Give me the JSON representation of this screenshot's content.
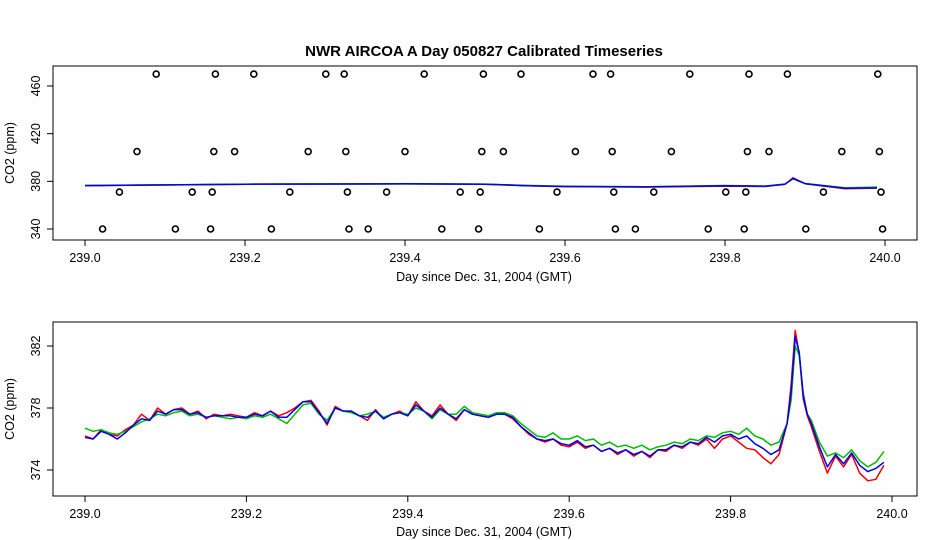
{
  "chart_data": [
    {
      "type": "scatter",
      "title": "NWR AIRCOA A  Day 050827  Calibrated Timeseries",
      "xlabel": "Day since Dec. 31, 2004 (GMT)",
      "ylabel": "CO2 (ppm)",
      "xlim": [
        239.0,
        240.0
      ],
      "ylim": [
        333,
        474
      ],
      "xticks": [
        239.0,
        239.2,
        239.4,
        239.6,
        239.8,
        240.0
      ],
      "xtick_labels": [
        "239.0",
        "239.2",
        "239.4",
        "239.6",
        "239.8",
        "240.0"
      ],
      "yticks": [
        340,
        380,
        420,
        460
      ],
      "ytick_labels": [
        "340",
        "380",
        "420",
        "460"
      ],
      "reference_points": [
        {
          "x": 239.022,
          "y": 340
        },
        {
          "x": 239.043,
          "y": 371
        },
        {
          "x": 239.065,
          "y": 405
        },
        {
          "x": 239.089,
          "y": 470
        },
        {
          "x": 239.113,
          "y": 340
        },
        {
          "x": 239.134,
          "y": 371
        },
        {
          "x": 239.157,
          "y": 340
        },
        {
          "x": 239.159,
          "y": 371
        },
        {
          "x": 239.161,
          "y": 405
        },
        {
          "x": 239.163,
          "y": 470
        },
        {
          "x": 239.187,
          "y": 405
        },
        {
          "x": 239.211,
          "y": 470
        },
        {
          "x": 239.233,
          "y": 340
        },
        {
          "x": 239.256,
          "y": 371
        },
        {
          "x": 239.279,
          "y": 405
        },
        {
          "x": 239.301,
          "y": 470
        },
        {
          "x": 239.324,
          "y": 470
        },
        {
          "x": 239.326,
          "y": 405
        },
        {
          "x": 239.328,
          "y": 371
        },
        {
          "x": 239.33,
          "y": 340
        },
        {
          "x": 239.354,
          "y": 340
        },
        {
          "x": 239.377,
          "y": 371
        },
        {
          "x": 239.4,
          "y": 405
        },
        {
          "x": 239.424,
          "y": 470
        },
        {
          "x": 239.446,
          "y": 340
        },
        {
          "x": 239.469,
          "y": 371
        },
        {
          "x": 239.492,
          "y": 340
        },
        {
          "x": 239.494,
          "y": 371
        },
        {
          "x": 239.496,
          "y": 405
        },
        {
          "x": 239.498,
          "y": 470
        },
        {
          "x": 239.523,
          "y": 405
        },
        {
          "x": 239.545,
          "y": 470
        },
        {
          "x": 239.568,
          "y": 340
        },
        {
          "x": 239.59,
          "y": 371
        },
        {
          "x": 239.613,
          "y": 405
        },
        {
          "x": 239.635,
          "y": 470
        },
        {
          "x": 239.657,
          "y": 470
        },
        {
          "x": 239.659,
          "y": 405
        },
        {
          "x": 239.661,
          "y": 371
        },
        {
          "x": 239.663,
          "y": 340
        },
        {
          "x": 239.688,
          "y": 340
        },
        {
          "x": 239.711,
          "y": 371
        },
        {
          "x": 239.733,
          "y": 405
        },
        {
          "x": 239.756,
          "y": 470
        },
        {
          "x": 239.779,
          "y": 340
        },
        {
          "x": 239.801,
          "y": 371
        },
        {
          "x": 239.824,
          "y": 340
        },
        {
          "x": 239.826,
          "y": 371
        },
        {
          "x": 239.828,
          "y": 405
        },
        {
          "x": 239.83,
          "y": 470
        },
        {
          "x": 239.855,
          "y": 405
        },
        {
          "x": 239.878,
          "y": 470
        },
        {
          "x": 239.901,
          "y": 340
        },
        {
          "x": 239.923,
          "y": 371
        },
        {
          "x": 239.946,
          "y": 405
        },
        {
          "x": 239.991,
          "y": 470
        },
        {
          "x": 239.993,
          "y": 405
        },
        {
          "x": 239.995,
          "y": 371
        },
        {
          "x": 239.997,
          "y": 340
        }
      ],
      "series": [
        {
          "name": "red",
          "color": "#ee0000",
          "x": [
            239.0,
            239.2,
            239.4,
            239.5,
            239.55,
            239.6,
            239.7,
            239.8,
            239.85,
            239.875,
            239.885,
            239.9,
            239.95,
            239.99
          ],
          "values": [
            376.3,
            377.6,
            377.9,
            377.6,
            376.3,
            375.6,
            375.2,
            376.0,
            375.7,
            377.5,
            383.0,
            378.0,
            373.8,
            374.3
          ]
        },
        {
          "name": "green",
          "color": "#00bb00",
          "x": [
            239.0,
            239.2,
            239.4,
            239.5,
            239.55,
            239.6,
            239.7,
            239.8,
            239.85,
            239.875,
            239.885,
            239.9,
            239.95,
            239.99
          ],
          "values": [
            376.6,
            377.5,
            377.8,
            377.7,
            376.6,
            375.9,
            375.5,
            376.5,
            376.0,
            377.8,
            382.0,
            378.2,
            374.6,
            375.2
          ]
        },
        {
          "name": "blue",
          "color": "#0000ee",
          "x": [
            239.0,
            239.2,
            239.4,
            239.5,
            239.55,
            239.6,
            239.7,
            239.8,
            239.85,
            239.875,
            239.885,
            239.9,
            239.95,
            239.99
          ],
          "values": [
            376.4,
            377.6,
            377.9,
            377.6,
            376.4,
            375.7,
            375.3,
            376.3,
            375.9,
            377.6,
            382.5,
            378.1,
            374.2,
            374.5
          ]
        }
      ]
    },
    {
      "type": "line",
      "title": "",
      "xlabel": "Day since Dec. 31, 2004 (GMT)",
      "ylabel": "CO2 (ppm)",
      "xlim": [
        238.995,
        240.05
      ],
      "ylim": [
        373.2,
        383.5
      ],
      "xticks": [
        239.0,
        239.2,
        239.4,
        239.6,
        239.8,
        240.0
      ],
      "xtick_labels": [
        "239.0",
        "239.2",
        "239.4",
        "239.6",
        "239.8",
        "240.0"
      ],
      "yticks": [
        374,
        378,
        382
      ],
      "ytick_labels": [
        "374",
        "378",
        "382"
      ],
      "series": [
        {
          "name": "red",
          "color": "#ee0000",
          "x": [
            239.0,
            239.01,
            239.02,
            239.03,
            239.04,
            239.05,
            239.06,
            239.07,
            239.08,
            239.09,
            239.1,
            239.11,
            239.12,
            239.13,
            239.14,
            239.15,
            239.16,
            239.17,
            239.18,
            239.19,
            239.2,
            239.21,
            239.22,
            239.23,
            239.24,
            239.25,
            239.26,
            239.27,
            239.28,
            239.29,
            239.3,
            239.31,
            239.32,
            239.33,
            239.34,
            239.35,
            239.36,
            239.37,
            239.38,
            239.39,
            239.4,
            239.41,
            239.42,
            239.43,
            239.44,
            239.45,
            239.46,
            239.47,
            239.48,
            239.49,
            239.5,
            239.51,
            239.52,
            239.53,
            239.54,
            239.55,
            239.56,
            239.57,
            239.58,
            239.59,
            239.6,
            239.61,
            239.62,
            239.63,
            239.64,
            239.65,
            239.66,
            239.67,
            239.68,
            239.69,
            239.7,
            239.71,
            239.72,
            239.73,
            239.74,
            239.75,
            239.76,
            239.77,
            239.78,
            239.79,
            239.8,
            239.81,
            239.82,
            239.83,
            239.84,
            239.85,
            239.86,
            239.87,
            239.875,
            239.88,
            239.885,
            239.89,
            239.895,
            239.9,
            239.91,
            239.92,
            239.93,
            239.94,
            239.95,
            239.96,
            239.97,
            239.98,
            239.99
          ],
          "values": [
            376.2,
            376.0,
            376.6,
            376.3,
            376.2,
            376.6,
            376.9,
            377.6,
            377.2,
            378.0,
            377.6,
            377.9,
            378.0,
            377.6,
            377.8,
            377.3,
            377.6,
            377.5,
            377.6,
            377.5,
            377.4,
            377.7,
            377.5,
            377.8,
            377.5,
            377.7,
            378.0,
            378.4,
            378.5,
            377.8,
            376.9,
            378.1,
            377.8,
            377.8,
            377.5,
            377.2,
            377.9,
            377.3,
            377.6,
            377.8,
            377.5,
            378.4,
            377.8,
            377.5,
            378.2,
            377.6,
            377.2,
            377.9,
            377.6,
            377.5,
            377.4,
            377.6,
            377.6,
            377.3,
            376.8,
            376.3,
            376.0,
            375.8,
            376.0,
            375.6,
            375.5,
            375.8,
            375.4,
            375.6,
            375.2,
            375.4,
            375.0,
            375.3,
            374.9,
            375.2,
            374.8,
            375.3,
            375.2,
            375.6,
            375.4,
            375.8,
            375.6,
            376.0,
            375.4,
            376.0,
            376.2,
            375.8,
            375.4,
            375.3,
            374.8,
            374.4,
            375.0,
            377.0,
            379.5,
            383.0,
            381.5,
            378.6,
            377.5,
            376.8,
            375.2,
            373.8,
            374.9,
            374.2,
            375.0,
            373.8,
            373.3,
            373.4,
            374.3
          ]
        },
        {
          "name": "green",
          "color": "#00bb00",
          "x": [
            239.0,
            239.01,
            239.02,
            239.03,
            239.04,
            239.05,
            239.06,
            239.07,
            239.08,
            239.09,
            239.1,
            239.11,
            239.12,
            239.13,
            239.14,
            239.15,
            239.16,
            239.17,
            239.18,
            239.19,
            239.2,
            239.21,
            239.22,
            239.23,
            239.24,
            239.25,
            239.26,
            239.27,
            239.28,
            239.29,
            239.3,
            239.31,
            239.32,
            239.33,
            239.34,
            239.35,
            239.36,
            239.37,
            239.38,
            239.39,
            239.4,
            239.41,
            239.42,
            239.43,
            239.44,
            239.45,
            239.46,
            239.47,
            239.48,
            239.49,
            239.5,
            239.51,
            239.52,
            239.53,
            239.54,
            239.55,
            239.56,
            239.57,
            239.58,
            239.59,
            239.6,
            239.61,
            239.62,
            239.63,
            239.64,
            239.65,
            239.66,
            239.67,
            239.68,
            239.69,
            239.7,
            239.71,
            239.72,
            239.73,
            239.74,
            239.75,
            239.76,
            239.77,
            239.78,
            239.79,
            239.8,
            239.81,
            239.82,
            239.83,
            239.84,
            239.85,
            239.86,
            239.87,
            239.875,
            239.88,
            239.885,
            239.89,
            239.895,
            239.9,
            239.91,
            239.92,
            239.93,
            239.94,
            239.95,
            239.96,
            239.97,
            239.98,
            239.99
          ],
          "values": [
            376.7,
            376.5,
            376.6,
            376.4,
            376.3,
            376.5,
            376.8,
            377.1,
            377.3,
            377.6,
            377.5,
            377.7,
            377.8,
            377.5,
            377.6,
            377.4,
            377.5,
            377.4,
            377.3,
            377.4,
            377.3,
            377.5,
            377.4,
            377.6,
            377.3,
            377.0,
            377.6,
            378.2,
            378.3,
            377.6,
            377.2,
            378.0,
            377.8,
            377.7,
            377.5,
            377.6,
            377.8,
            377.4,
            377.6,
            377.7,
            377.6,
            378.0,
            377.8,
            377.3,
            377.9,
            377.6,
            377.6,
            378.1,
            377.7,
            377.6,
            377.5,
            377.7,
            377.7,
            377.5,
            377.0,
            376.6,
            376.2,
            376.1,
            376.4,
            376.0,
            376.0,
            376.2,
            375.9,
            376.0,
            375.6,
            375.8,
            375.5,
            375.6,
            375.4,
            375.6,
            375.3,
            375.5,
            375.6,
            375.8,
            375.7,
            376.0,
            375.9,
            376.2,
            376.1,
            376.4,
            376.5,
            376.3,
            376.7,
            376.2,
            376.0,
            375.6,
            375.8,
            377.0,
            378.5,
            382.0,
            381.4,
            379.0,
            377.6,
            377.2,
            375.8,
            374.9,
            375.1,
            374.8,
            375.3,
            374.6,
            374.2,
            374.5,
            375.2
          ]
        },
        {
          "name": "blue",
          "color": "#0000ee",
          "x": [
            239.0,
            239.01,
            239.02,
            239.03,
            239.04,
            239.05,
            239.06,
            239.07,
            239.08,
            239.09,
            239.1,
            239.11,
            239.12,
            239.13,
            239.14,
            239.15,
            239.16,
            239.17,
            239.18,
            239.19,
            239.2,
            239.21,
            239.22,
            239.23,
            239.24,
            239.25,
            239.26,
            239.27,
            239.28,
            239.29,
            239.3,
            239.31,
            239.32,
            239.33,
            239.34,
            239.35,
            239.36,
            239.37,
            239.38,
            239.39,
            239.4,
            239.41,
            239.42,
            239.43,
            239.44,
            239.45,
            239.46,
            239.47,
            239.48,
            239.49,
            239.5,
            239.51,
            239.52,
            239.53,
            239.54,
            239.55,
            239.56,
            239.57,
            239.58,
            239.59,
            239.6,
            239.61,
            239.62,
            239.63,
            239.64,
            239.65,
            239.66,
            239.67,
            239.68,
            239.69,
            239.7,
            239.71,
            239.72,
            239.73,
            239.74,
            239.75,
            239.76,
            239.77,
            239.78,
            239.79,
            239.8,
            239.81,
            239.82,
            239.83,
            239.84,
            239.85,
            239.86,
            239.87,
            239.875,
            239.88,
            239.885,
            239.89,
            239.895,
            239.9,
            239.91,
            239.92,
            239.93,
            239.94,
            239.95,
            239.96,
            239.97,
            239.98,
            239.99
          ],
          "values": [
            376.1,
            376.0,
            376.5,
            376.3,
            376.0,
            376.4,
            376.9,
            377.3,
            377.2,
            377.8,
            377.6,
            377.9,
            377.9,
            377.6,
            377.7,
            377.4,
            377.5,
            377.5,
            377.5,
            377.4,
            377.4,
            377.6,
            377.5,
            377.8,
            377.4,
            377.4,
            377.9,
            378.4,
            378.4,
            377.7,
            377.0,
            378.0,
            377.8,
            377.8,
            377.5,
            377.4,
            377.8,
            377.3,
            377.6,
            377.7,
            377.5,
            378.2,
            377.8,
            377.4,
            378.0,
            377.6,
            377.3,
            377.9,
            377.6,
            377.5,
            377.4,
            377.6,
            377.6,
            377.4,
            376.8,
            376.4,
            376.0,
            375.9,
            376.0,
            375.7,
            375.6,
            375.9,
            375.5,
            375.6,
            375.2,
            375.4,
            375.1,
            375.3,
            375.0,
            375.2,
            374.9,
            375.3,
            375.3,
            375.6,
            375.5,
            375.8,
            375.7,
            376.1,
            375.8,
            376.2,
            376.3,
            376.0,
            376.2,
            375.7,
            375.4,
            375.0,
            375.3,
            377.0,
            379.0,
            382.6,
            381.6,
            378.8,
            377.6,
            377.0,
            375.5,
            374.2,
            375.0,
            374.4,
            375.1,
            374.3,
            373.9,
            374.1,
            374.5
          ]
        }
      ]
    }
  ]
}
